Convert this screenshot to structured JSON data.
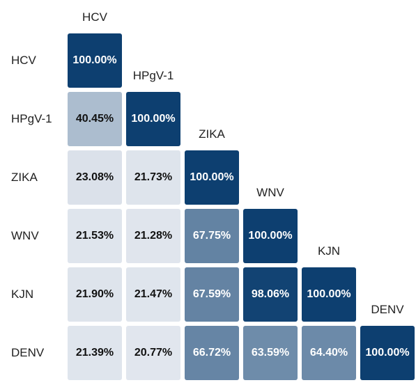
{
  "chart_data": {
    "type": "heatmap",
    "labels": [
      "HCV",
      "HPgV-1",
      "ZIKA",
      "WNV",
      "KJN",
      "DENV"
    ],
    "values": [
      [
        100.0
      ],
      [
        40.45,
        100.0
      ],
      [
        23.08,
        21.73,
        100.0
      ],
      [
        21.53,
        21.28,
        67.75,
        100.0
      ],
      [
        21.9,
        21.47,
        67.59,
        98.06,
        100.0
      ],
      [
        21.39,
        20.77,
        66.72,
        63.59,
        64.4,
        100.0
      ]
    ],
    "value_format": "percent",
    "color_scale": {
      "low": "#e3e8ef",
      "high": "#0d3f70"
    }
  }
}
